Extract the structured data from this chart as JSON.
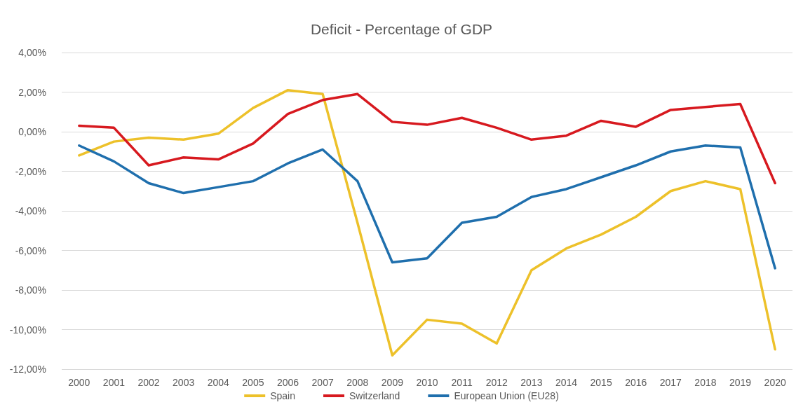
{
  "chart_data": {
    "type": "line",
    "title": "Deficit - Percentage of GDP",
    "categories": [
      "2000",
      "2001",
      "2002",
      "2003",
      "2004",
      "2005",
      "2006",
      "2007",
      "2008",
      "2009",
      "2010",
      "2011",
      "2012",
      "2013",
      "2014",
      "2015",
      "2016",
      "2017",
      "2018",
      "2019",
      "2020"
    ],
    "series": [
      {
        "name": "Spain",
        "color": "#edc12a",
        "values": [
          -1.2,
          -0.5,
          -0.3,
          -0.4,
          -0.1,
          1.2,
          2.1,
          1.9,
          -4.6,
          -11.3,
          -9.5,
          -9.7,
          -10.7,
          -7.0,
          -5.9,
          -5.2,
          -4.3,
          -3.0,
          -2.5,
          -2.9,
          -11.0
        ]
      },
      {
        "name": "Switzerland",
        "color": "#d7191f",
        "values": [
          0.3,
          0.2,
          -1.7,
          -1.3,
          -1.4,
          -0.6,
          0.9,
          1.6,
          1.9,
          0.5,
          0.35,
          0.7,
          0.2,
          -0.4,
          -0.2,
          0.55,
          0.25,
          1.1,
          1.25,
          1.4,
          -2.6
        ]
      },
      {
        "name": "European Union (EU28)",
        "color": "#1f6fad",
        "values": [
          -0.7,
          -1.5,
          -2.6,
          -3.1,
          -2.8,
          -2.5,
          -1.6,
          -0.9,
          -2.5,
          -6.6,
          -6.4,
          -4.6,
          -4.3,
          -3.3,
          -2.9,
          -2.3,
          -1.7,
          -1.0,
          -0.7,
          -0.8,
          -6.9
        ]
      }
    ],
    "ylim": [
      -12,
      4
    ],
    "yticks": [
      {
        "value": -12,
        "label": "-12,00%"
      },
      {
        "value": -10,
        "label": "-10,00%"
      },
      {
        "value": -8,
        "label": "-8,00%"
      },
      {
        "value": -6,
        "label": "-6,00%"
      },
      {
        "value": -4,
        "label": "-4,00%"
      },
      {
        "value": -2,
        "label": "-2,00%"
      },
      {
        "value": 0,
        "label": "0,00%"
      },
      {
        "value": 2,
        "label": "2,00%"
      },
      {
        "value": 4,
        "label": "4,00%"
      }
    ],
    "grid": "y",
    "legend": "bottom",
    "marker": "none",
    "line_style": "solid"
  }
}
